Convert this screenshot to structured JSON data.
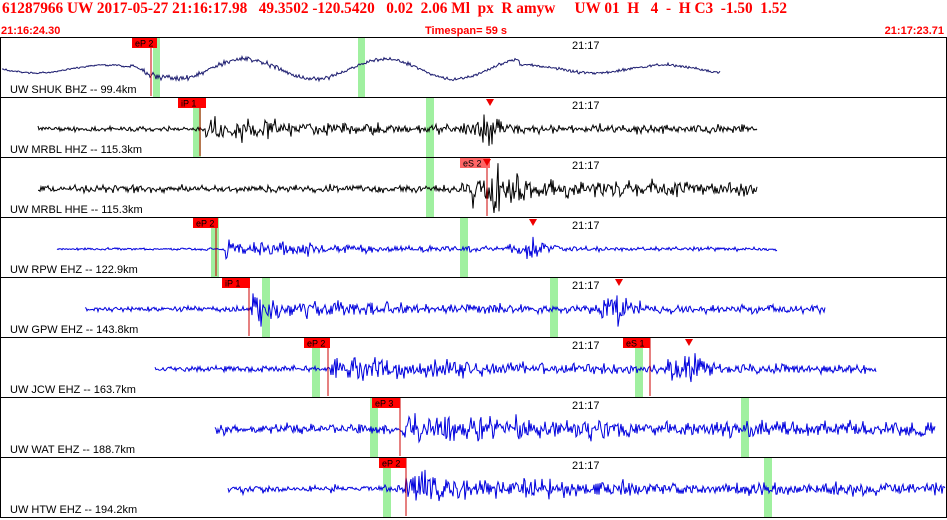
{
  "header": {
    "event_line": "61287966 UW 2017-05-27 21:16:17.98   49.3502 -120.5420   0.02  2.06 Ml  px  R amyw     UW 01  H   4  -  H C3  -1.50  1.52",
    "start_time": "21:16:24.30",
    "timespan": "Timespan=  59 s",
    "end_time": "21:17:23.71"
  },
  "colors": {
    "pick_flag": "#ff0000",
    "pick_flag_pending": "#ff6666",
    "highlight": "#a0f0a0",
    "trace_velocity_hh": "#000000",
    "trace_velocity_bh": "#1a1a6e",
    "trace_eh": "#0000dd",
    "border": "#000000"
  },
  "time_mark_label": "21:17",
  "traces": [
    {
      "station_label": "UW SHUK BHZ -- 99.4km",
      "picks": [
        {
          "label": "eP 2",
          "pending": false
        }
      ],
      "color_key": "trace_velocity_bh"
    },
    {
      "station_label": "UW MRBL HHZ -- 115.3km",
      "picks": [
        {
          "label": "iP 1",
          "pending": false
        }
      ],
      "color_key": "trace_velocity_hh"
    },
    {
      "station_label": "UW MRBL HHE -- 115.3km",
      "picks": [
        {
          "label": "eS 2",
          "pending": true
        }
      ],
      "color_key": "trace_velocity_hh"
    },
    {
      "station_label": "UW RPW EHZ -- 122.9km",
      "picks": [
        {
          "label": "eP 2",
          "pending": false
        }
      ],
      "color_key": "trace_eh"
    },
    {
      "station_label": "UW GPW EHZ -- 143.8km",
      "picks": [
        {
          "label": "iP 1",
          "pending": false
        }
      ],
      "color_key": "trace_eh"
    },
    {
      "station_label": "UW JCW EHZ -- 163.7km",
      "picks": [
        {
          "label": "eP 2",
          "pending": false
        },
        {
          "label": "eS 1",
          "pending": false
        }
      ],
      "color_key": "trace_eh"
    },
    {
      "station_label": "UW WAT EHZ -- 188.7km",
      "picks": [
        {
          "label": "eP 3",
          "pending": false
        }
      ],
      "color_key": "trace_eh"
    },
    {
      "station_label": "UW HTW EHZ -- 194.2km",
      "picks": [
        {
          "label": "eP 2",
          "pending": false
        }
      ],
      "color_key": "trace_eh"
    }
  ]
}
